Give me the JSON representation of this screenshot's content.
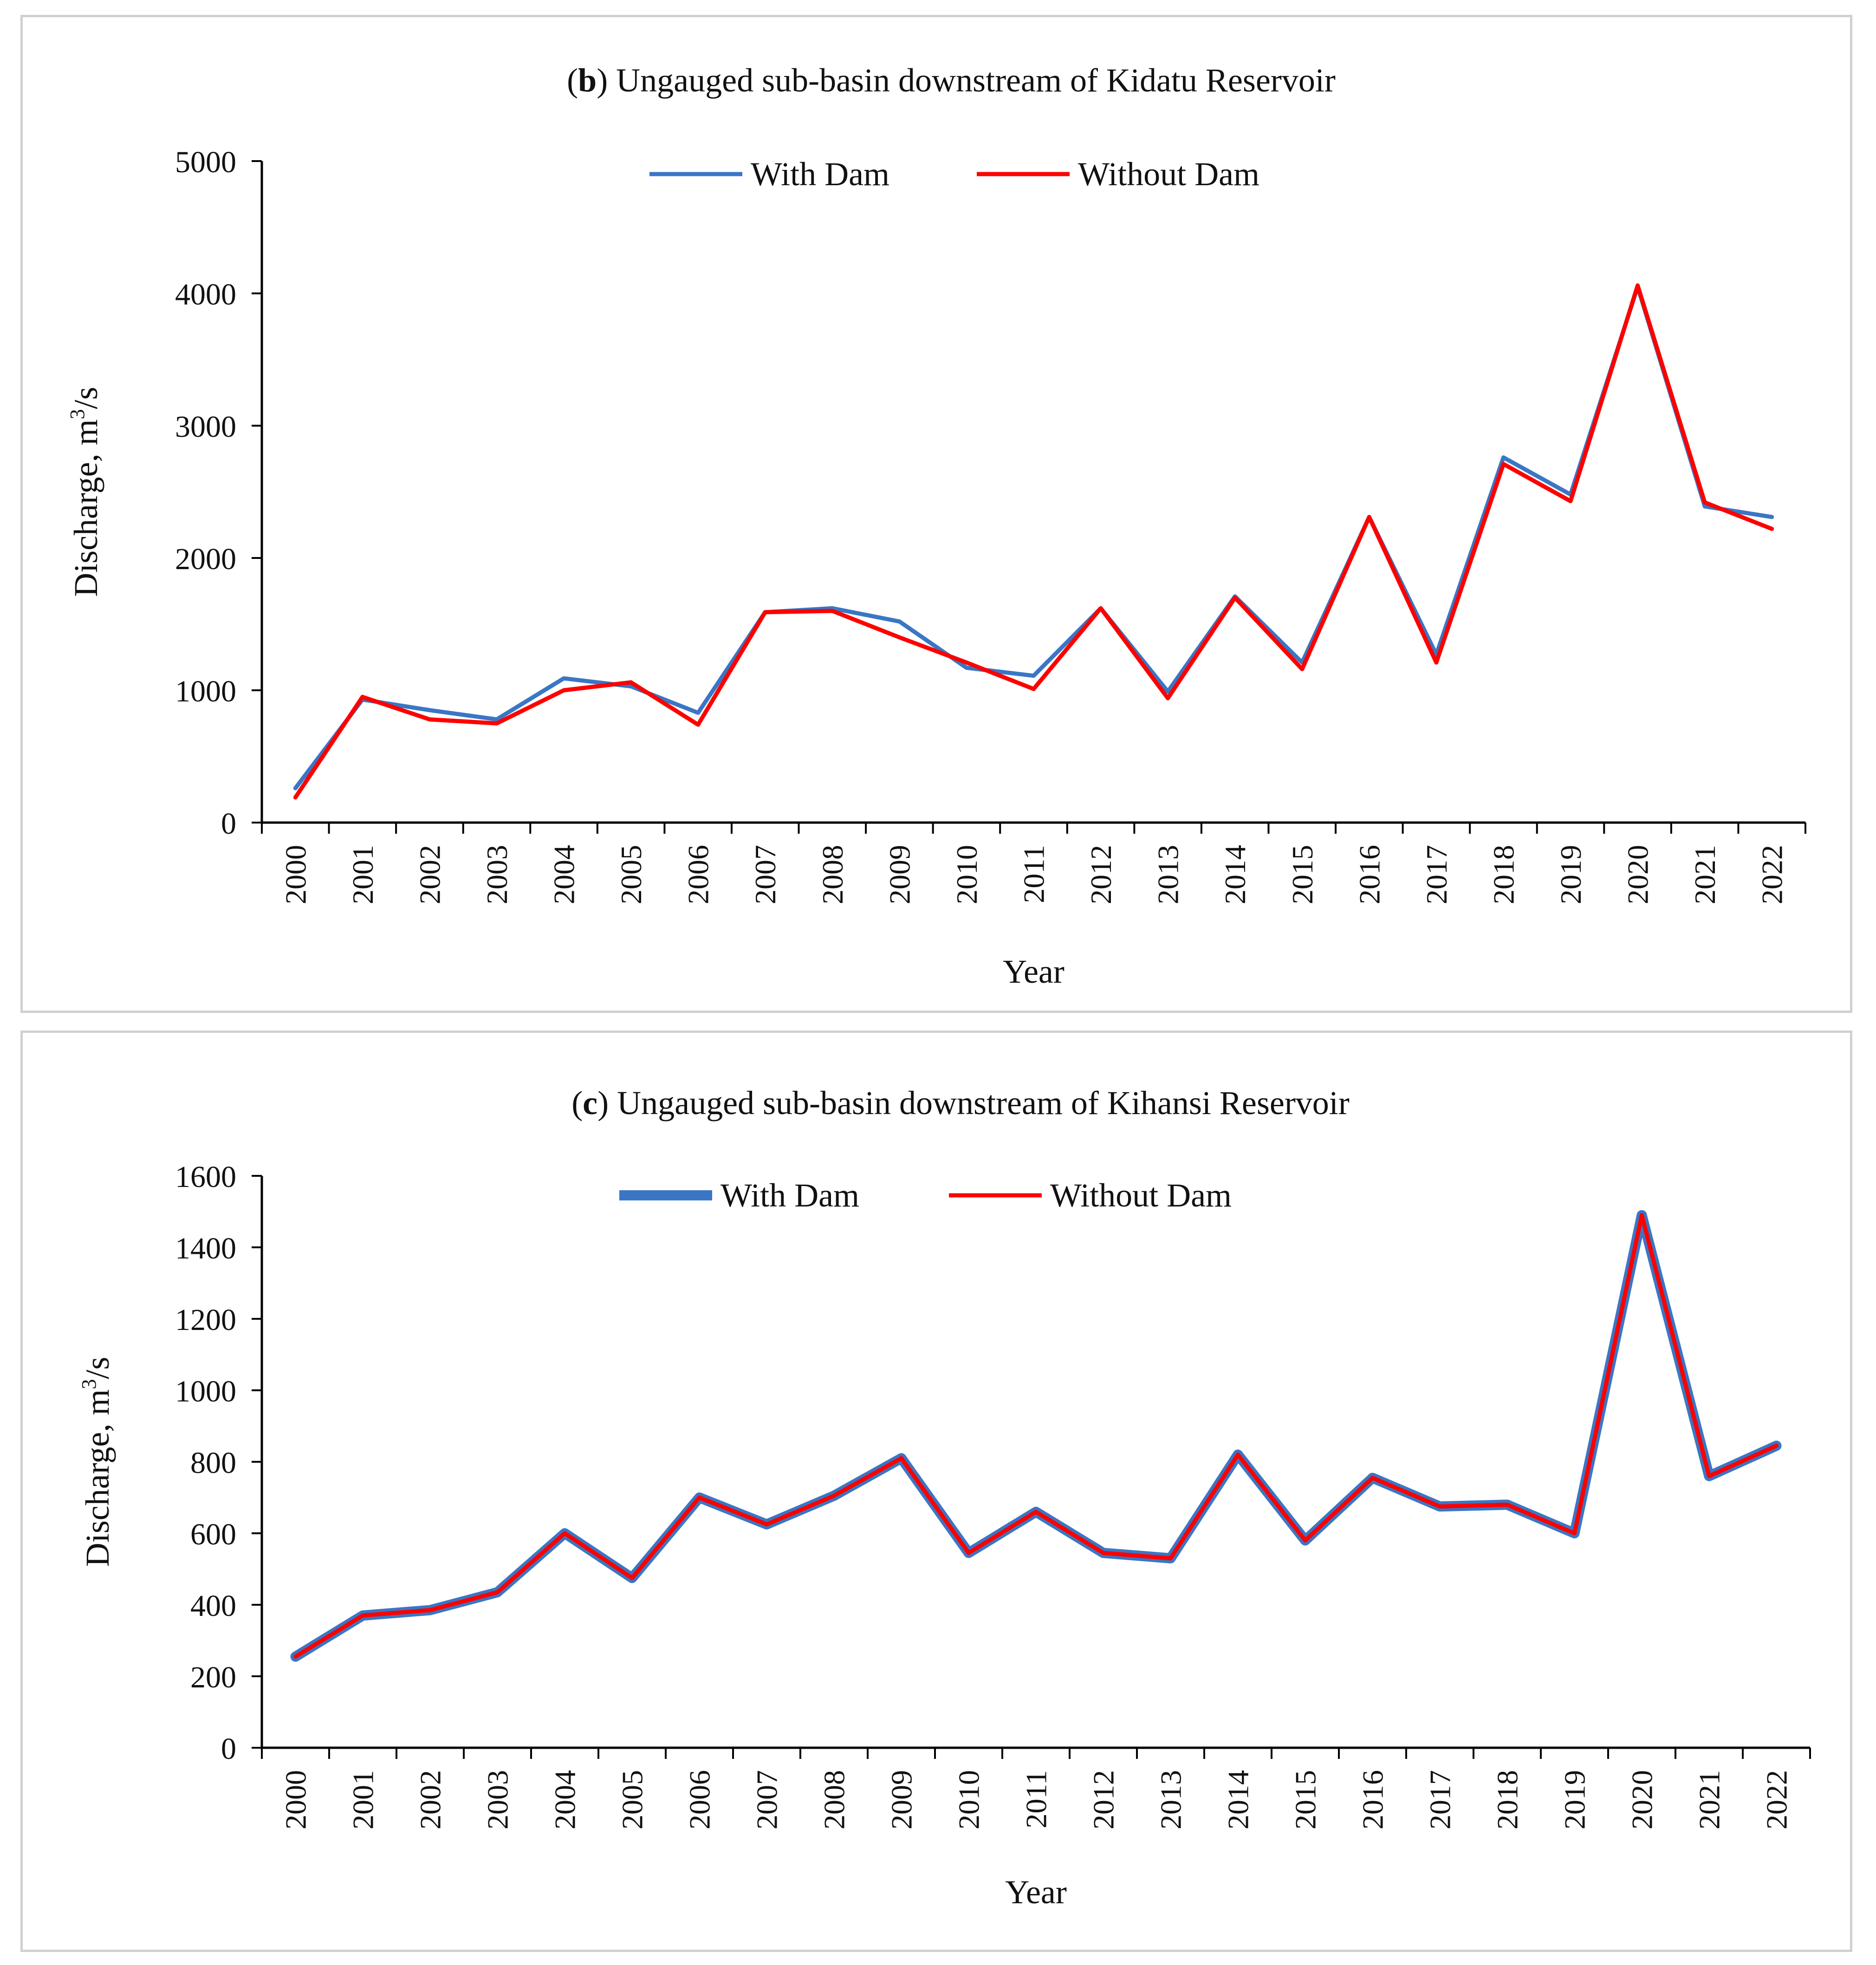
{
  "chart_data": [
    {
      "type": "line",
      "title_bold": "b",
      "title": "Ungauged sub-basin downstream of Kidatu Reservoir",
      "xlabel": "Year",
      "ylabel": "Discharge, m³/s",
      "ylabel_main": "Discharge, m",
      "ylabel_sup": "3",
      "ylabel_tail": "/s",
      "ylim": [
        0,
        5000
      ],
      "yticks": [
        "0",
        "1000",
        "2000",
        "3000",
        "4000",
        "5000"
      ],
      "categories": [
        "2000",
        "2001",
        "2002",
        "2003",
        "2004",
        "2005",
        "2006",
        "2007",
        "2008",
        "2009",
        "2010",
        "2011",
        "2012",
        "2013",
        "2014",
        "2015",
        "2016",
        "2017",
        "2018",
        "2019",
        "2020",
        "2021",
        "2022"
      ],
      "series": [
        {
          "name": "With Dam",
          "color": "#3a76c5",
          "values": [
            260,
            930,
            850,
            780,
            1090,
            1030,
            830,
            1590,
            1620,
            1520,
            1170,
            1110,
            1620,
            990,
            1710,
            1210,
            2310,
            1270,
            2760,
            2480,
            4050,
            2390,
            2310
          ]
        },
        {
          "name": "Without Dam",
          "color": "#ff0000",
          "values": [
            190,
            950,
            780,
            750,
            1000,
            1060,
            740,
            1590,
            1600,
            1400,
            1210,
            1010,
            1620,
            940,
            1700,
            1160,
            2310,
            1210,
            2710,
            2430,
            4060,
            2420,
            2220
          ]
        }
      ],
      "legend": "top-center"
    },
    {
      "type": "line",
      "title_bold": "c",
      "title": "Ungauged sub-basin downstream of Kihansi Reservoir",
      "xlabel": "Year",
      "ylabel": "Discharge, m³/s",
      "ylabel_main": "Discharge, m",
      "ylabel_sup": "3",
      "ylabel_tail": "/s",
      "ylim": [
        0,
        1600
      ],
      "yticks": [
        "0",
        "200",
        "400",
        "600",
        "800",
        "1000",
        "1200",
        "1400",
        "1600"
      ],
      "categories": [
        "2000",
        "2001",
        "2002",
        "2003",
        "2004",
        "2005",
        "2006",
        "2007",
        "2008",
        "2009",
        "2010",
        "2011",
        "2012",
        "2013",
        "2014",
        "2015",
        "2016",
        "2017",
        "2018",
        "2019",
        "2020",
        "2021",
        "2022"
      ],
      "series": [
        {
          "name": "With Dam",
          "color": "#3a76c5",
          "values": [
            255,
            370,
            385,
            435,
            600,
            475,
            700,
            625,
            705,
            810,
            545,
            660,
            545,
            530,
            820,
            580,
            755,
            675,
            680,
            600,
            1490,
            760,
            845
          ]
        },
        {
          "name": "Without Dam",
          "color": "#ff0000",
          "values": [
            255,
            370,
            385,
            435,
            600,
            475,
            700,
            625,
            705,
            810,
            545,
            660,
            545,
            530,
            820,
            580,
            755,
            675,
            680,
            600,
            1490,
            760,
            845
          ]
        }
      ],
      "legend": "top-center"
    }
  ]
}
